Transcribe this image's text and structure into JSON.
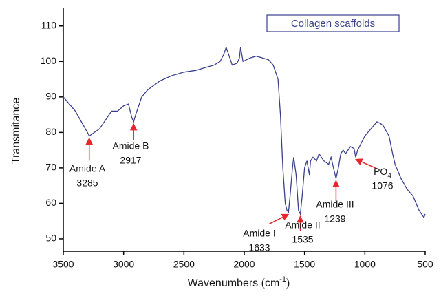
{
  "chart_data": {
    "type": "line",
    "y_label": "Transmitance",
    "x_label": {
      "text": "Wavenumbers (cm",
      "sup": "-1",
      "end": ")"
    },
    "xlim": [
      3500,
      500
    ],
    "ylim": [
      46.5,
      115
    ],
    "xticks": [
      3500,
      3000,
      2500,
      2000,
      1500,
      1000,
      500
    ],
    "yticks": [
      50,
      60,
      70,
      80,
      90,
      100,
      110
    ],
    "legend": "top-right",
    "series": [
      {
        "name": "Collagen scaffolds",
        "color": "#3a3f8c",
        "x": [
          3500,
          3400,
          3300,
          3285,
          3200,
          3100,
          3050,
          3000,
          2960,
          2930,
          2917,
          2900,
          2850,
          2800,
          2700,
          2600,
          2500,
          2400,
          2350,
          2300,
          2250,
          2200,
          2170,
          2150,
          2120,
          2100,
          2060,
          2040,
          2030,
          2010,
          1950,
          1900,
          1850,
          1800,
          1760,
          1720,
          1700,
          1680,
          1660,
          1645,
          1633,
          1620,
          1600,
          1590,
          1570,
          1550,
          1535,
          1520,
          1500,
          1480,
          1460,
          1450,
          1430,
          1400,
          1380,
          1340,
          1300,
          1280,
          1260,
          1239,
          1220,
          1200,
          1180,
          1160,
          1120,
          1090,
          1076,
          1060,
          1030,
          1000,
          950,
          900,
          870,
          850,
          800,
          770,
          750,
          700,
          650,
          600,
          550,
          510,
          500
        ],
        "values": [
          90,
          86,
          80,
          79,
          81,
          86,
          86,
          87.5,
          88,
          84,
          83,
          85,
          90,
          92,
          94.5,
          96,
          97,
          97.5,
          98,
          98.5,
          99,
          100,
          102,
          104,
          101,
          99,
          99.5,
          101,
          104,
          100,
          101,
          101.5,
          101,
          100.5,
          99,
          95,
          85,
          70,
          60,
          58,
          57.5,
          62,
          70,
          73,
          68,
          58,
          57,
          62,
          70,
          72,
          68,
          72,
          73,
          72,
          74,
          72,
          71,
          73,
          70,
          67,
          70,
          74,
          75,
          74,
          76,
          75.5,
          73,
          75,
          77,
          79,
          81,
          83,
          82.5,
          82,
          79,
          74,
          71,
          67,
          64,
          62,
          58,
          56,
          57
        ]
      }
    ],
    "annotations": [
      {
        "label": "Amide A",
        "x": 3285
      },
      {
        "label": "Amide B",
        "x": 2917
      },
      {
        "label": "Amide I",
        "x": 1633
      },
      {
        "label": "Amide II",
        "x": 1535
      },
      {
        "label": "Amide III",
        "x": 1239
      },
      {
        "label": {
          "text": "PO",
          "sub": "4"
        },
        "x": 1076
      }
    ]
  }
}
